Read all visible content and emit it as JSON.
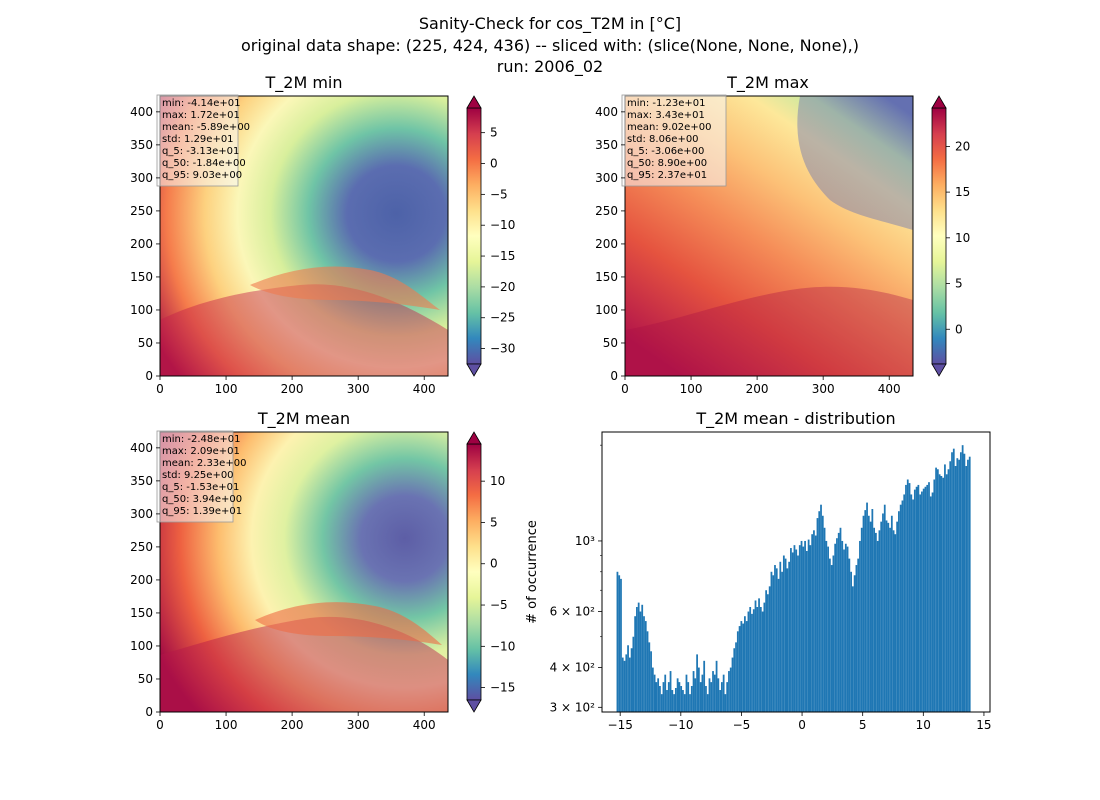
{
  "title_lines": [
    "Sanity-Check for cos_T2M in [°C]",
    "original data shape: (225, 424, 436) -- sliced with: (slice(None, None, None),)",
    "run: 2006_02"
  ],
  "chart_data": [
    {
      "type": "heatmap",
      "title": "T_2M min",
      "colormap": "Spectral_r",
      "xlim": [
        0,
        436
      ],
      "ylim": [
        0,
        424
      ],
      "xticks": [
        0,
        100,
        200,
        300,
        400
      ],
      "yticks": [
        0,
        50,
        100,
        150,
        200,
        250,
        300,
        350,
        400
      ],
      "colorbar": {
        "vmin": -32.5,
        "vmax": 9.0,
        "ticks": [
          -30,
          -25,
          -20,
          -15,
          -10,
          -5,
          0,
          5
        ],
        "extend": "both"
      },
      "stats": [
        "min: -4.14e+01",
        "max: 1.72e+01",
        "mean: -5.89e+00",
        "std: 1.29e+01",
        "q_5: -3.13e+01",
        "q_50: -1.84e+00",
        "q_95: 9.03e+00"
      ]
    },
    {
      "type": "heatmap",
      "title": "T_2M max",
      "colormap": "Spectral_r",
      "xlim": [
        0,
        436
      ],
      "ylim": [
        0,
        424
      ],
      "xticks": [
        0,
        100,
        200,
        300,
        400
      ],
      "yticks": [
        0,
        50,
        100,
        150,
        200,
        250,
        300,
        350,
        400
      ],
      "colorbar": {
        "vmin": -3.8,
        "vmax": 24.2,
        "ticks": [
          0,
          5,
          10,
          15,
          20
        ],
        "extend": "both"
      },
      "stats": [
        "min: -1.23e+01",
        "max: 3.43e+01",
        "mean: 9.02e+00",
        "std: 8.06e+00",
        "q_5: -3.06e+00",
        "q_50: 8.90e+00",
        "q_95: 2.37e+01"
      ]
    },
    {
      "type": "heatmap",
      "title": "T_2M mean",
      "colormap": "Spectral_r",
      "xlim": [
        0,
        436
      ],
      "ylim": [
        0,
        424
      ],
      "xticks": [
        0,
        100,
        200,
        300,
        400
      ],
      "yticks": [
        0,
        50,
        100,
        150,
        200,
        250,
        300,
        350,
        400
      ],
      "colorbar": {
        "vmin": -16.5,
        "vmax": 14.5,
        "ticks": [
          -15,
          -10,
          -5,
          0,
          5,
          10
        ],
        "extend": "both"
      },
      "stats": [
        "min: -2.48e+01",
        "max: 2.09e+01",
        "mean: 2.33e+00",
        "std: 9.25e+00",
        "q_5: -1.53e+01",
        "q_50: 3.94e+00",
        "q_95: 1.39e+01"
      ]
    },
    {
      "type": "bar",
      "title": "T_2M mean - distribution",
      "ylabel": "# of occurrence",
      "yscale": "log",
      "color": "#1f77b4",
      "xlim": [
        -16.5,
        15.5
      ],
      "ylim": [
        290,
        2200
      ],
      "xticks": [
        -15,
        -10,
        -5,
        0,
        5,
        10,
        15
      ],
      "yticks": [
        {
          "value": 300,
          "label": "3 × 10²"
        },
        {
          "value": 400,
          "label": "4 × 10²"
        },
        {
          "value": 600,
          "label": "6 × 10²"
        },
        {
          "value": 1000,
          "label": "10³"
        }
      ],
      "yminor": [
        500,
        700,
        800,
        900,
        2000
      ],
      "bin_range": [
        -15.3,
        13.9
      ],
      "counts": [
        800,
        780,
        760,
        430,
        420,
        440,
        470,
        430,
        460,
        500,
        580,
        620,
        640,
        600,
        630,
        580,
        560,
        520,
        480,
        450,
        400,
        380,
        360,
        370,
        350,
        330,
        360,
        380,
        340,
        360,
        390,
        340,
        330,
        345,
        370,
        360,
        350,
        340,
        330,
        380,
        360,
        330,
        350,
        390,
        370,
        440,
        400,
        360,
        380,
        420,
        350,
        330,
        370,
        360,
        390,
        380,
        420,
        370,
        340,
        360,
        380,
        330,
        360,
        390,
        400,
        430,
        460,
        480,
        520,
        540,
        560,
        550,
        580,
        560,
        600,
        620,
        590,
        610,
        650,
        620,
        660,
        620,
        600,
        640,
        700,
        680,
        720,
        800,
        780,
        840,
        820,
        760,
        860,
        800,
        900,
        880,
        820,
        860,
        950,
        920,
        970,
        940,
        900,
        970,
        1000,
        960,
        1000,
        930,
        1010,
        970,
        1050,
        1080,
        1040,
        1180,
        1240,
        1300,
        1200,
        1100,
        1000,
        960,
        880,
        840,
        900,
        980,
        1020,
        1060,
        1100,
        1000,
        940,
        980,
        960,
        880,
        800,
        720,
        780,
        840,
        880,
        1000,
        1100,
        1200,
        1250,
        1320,
        1200,
        1150,
        1260,
        1100,
        1060,
        1000,
        1080,
        1150,
        1220,
        1300,
        1160,
        1140,
        1100,
        1200,
        1080,
        1050,
        1150,
        1240,
        1300,
        1340,
        1400,
        1500,
        1560,
        1520,
        1400,
        1350,
        1450,
        1480,
        1500,
        1400,
        1430,
        1460,
        1480,
        1500,
        1530,
        1380,
        1420,
        1560,
        1700,
        1680,
        1620,
        1600,
        1580,
        1740,
        1620,
        1680,
        1780,
        1900,
        1950,
        1720,
        1820,
        1800,
        1900,
        2000,
        1880,
        1720,
        1800,
        1840
      ]
    }
  ]
}
